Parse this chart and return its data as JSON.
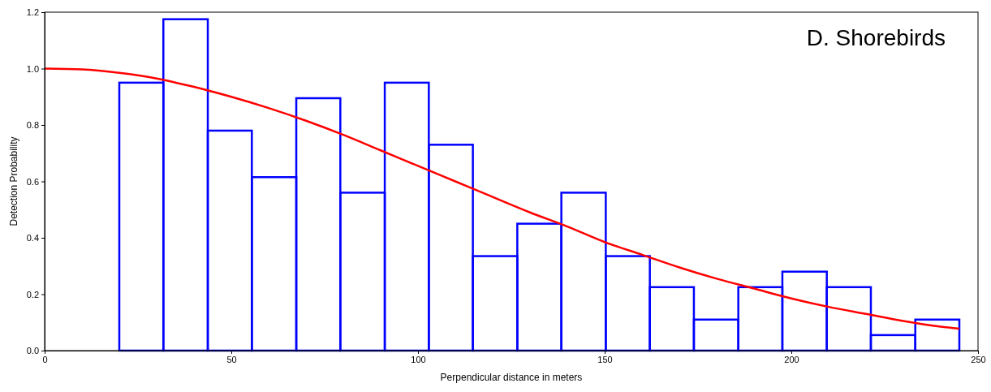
{
  "chart_data": {
    "type": "histogram",
    "xlabel": "Perpendicular distance in meters",
    "ylabel": "Detection Probability",
    "annotations": [
      "D. Shorebirds"
    ],
    "xlim": [
      0,
      250
    ],
    "xticks": [
      0,
      50,
      100,
      150,
      200,
      250
    ],
    "ylim": [
      0,
      1.2
    ],
    "yticks": [
      {
        "value": 0,
        "label": "0.0"
      },
      {
        "value": 0.2,
        "label": "0.2"
      },
      {
        "value": 0.4,
        "label": "0.4"
      },
      {
        "value": 0.6,
        "label": "0.6"
      },
      {
        "value": 0.8,
        "label": "0.8"
      },
      {
        "value": 1,
        "label": "1.0"
      },
      {
        "value": 1.2,
        "label": "1.2"
      }
    ],
    "series": [
      {
        "color": "#0000ff",
        "bins": [
          20,
          31.8,
          43.7,
          55.5,
          67.4,
          79.2,
          91.1,
          102.9,
          114.7,
          126.6,
          138.4,
          150.3,
          162.1,
          173.9,
          185.8,
          197.6,
          209.5,
          221.3,
          233.2,
          245
        ],
        "values": [
          0.95,
          1.175,
          0.78,
          0.615,
          0.895,
          0.56,
          0.95,
          0.73,
          0.335,
          0.45,
          0.56,
          0.335,
          0.225,
          0.11,
          0.225,
          0.28,
          0.225,
          0.055,
          0.11
        ]
      },
      {
        "type": "line",
        "color": "#ff0000",
        "x": [
          0,
          10,
          20,
          30,
          40,
          50,
          60,
          70,
          80,
          90,
          100,
          110,
          120,
          130,
          140,
          150,
          160,
          170,
          180,
          190,
          200,
          210,
          220,
          230,
          240,
          245
        ],
        "values": [
          1.0,
          0.997,
          0.985,
          0.965,
          0.935,
          0.9,
          0.86,
          0.815,
          0.765,
          0.71,
          0.655,
          0.6,
          0.545,
          0.49,
          0.44,
          0.385,
          0.34,
          0.295,
          0.255,
          0.22,
          0.185,
          0.155,
          0.13,
          0.105,
          0.085,
          0.078
        ]
      }
    ]
  }
}
